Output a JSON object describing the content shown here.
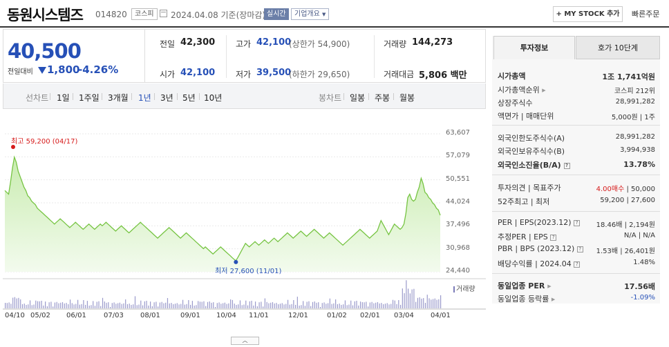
{
  "header": {
    "company": "동원시스템즈",
    "code": "014820",
    "market_badge": "코스피",
    "date_text": "2024.04.08 기준(장마감)",
    "live_label": "실시간",
    "corp_label": "기업개요",
    "mystock_label": "+ MY STOCK 추가",
    "quick_order": "빠른주문"
  },
  "price": {
    "current": "40,500",
    "compare_label": "전일대비",
    "change": "1,800",
    "change_pct": "-4.26%",
    "color_down": "#2650b7"
  },
  "stats": {
    "prev_label": "전일",
    "prev_value": "42,300",
    "high_label": "고가",
    "high_value": "42,100",
    "high_note": "(상한가 54,900)",
    "volume_label": "거래량",
    "volume_value": "144,273",
    "open_label": "시가",
    "open_value": "42,100",
    "low_label": "저가",
    "low_value": "39,500",
    "low_note": "(하한가 29,650)",
    "amount_label": "거래대금",
    "amount_value": "5,806 백만"
  },
  "tabs": {
    "line_label": "선차트",
    "line_items": [
      "1일",
      "1주일",
      "3개월",
      "1년",
      "3년",
      "5년",
      "10년"
    ],
    "selected": "1년",
    "candle_label": "봉차트",
    "candle_items": [
      "일봉",
      "주봉",
      "월봉"
    ]
  },
  "chart_data": {
    "type": "area",
    "series_color": "#76c442",
    "y_ticks": [
      "63,607",
      "57,079",
      "50,551",
      "44,024",
      "37,496",
      "30,968",
      "24,440"
    ],
    "ylim": [
      24440,
      63607
    ],
    "x_ticks": [
      "04/10",
      "05/02",
      "06/01",
      "07/03",
      "08/01",
      "09/01",
      "10/04",
      "11/01",
      "12/01",
      "01/02",
      "02/01",
      "03/04",
      "04/01"
    ],
    "high_annotation": "최고 59,200 (04/17)",
    "low_annotation": "최저 27,600 (11/01)",
    "high": 59200,
    "low": 27600,
    "volume_label": "거래량",
    "prices": [
      47500,
      47000,
      46500,
      50000,
      54000,
      57000,
      55500,
      53000,
      51500,
      50000,
      48500,
      47500,
      46000,
      45500,
      44500,
      44000,
      43500,
      42500,
      42000,
      41500,
      41000,
      40500,
      40000,
      39500,
      39000,
      38500,
      38000,
      38500,
      39000,
      39500,
      39000,
      38500,
      38000,
      37500,
      37000,
      37500,
      38000,
      38500,
      38000,
      37500,
      37000,
      36500,
      37000,
      37500,
      38000,
      37500,
      37000,
      36500,
      37000,
      37500,
      38000,
      37500,
      38000,
      38500,
      38000,
      37500,
      37000,
      36500,
      36000,
      36500,
      37000,
      37500,
      37000,
      36500,
      36000,
      35500,
      36000,
      36500,
      37000,
      37500,
      38000,
      38500,
      38000,
      37500,
      37000,
      36500,
      36000,
      35500,
      35000,
      34500,
      34000,
      34500,
      35000,
      35500,
      36000,
      36500,
      37000,
      36500,
      36000,
      35500,
      35000,
      34500,
      34000,
      34500,
      35000,
      35500,
      35000,
      34500,
      34000,
      33500,
      33000,
      32500,
      32000,
      31500,
      31000,
      31500,
      31000,
      30500,
      30000,
      29500,
      30000,
      30500,
      31000,
      31500,
      31000,
      30500,
      30000,
      29500,
      29000,
      28500,
      28000,
      27600,
      28500,
      29500,
      30500,
      31500,
      32500,
      32000,
      31500,
      32000,
      32500,
      33000,
      32500,
      32000,
      32500,
      33000,
      33500,
      33000,
      32500,
      33000,
      33500,
      34000,
      33500,
      33000,
      33500,
      34000,
      34500,
      35000,
      35500,
      35000,
      34500,
      34000,
      34500,
      35000,
      35500,
      36000,
      35500,
      35000,
      34500,
      35000,
      35500,
      36000,
      36500,
      36000,
      35500,
      35000,
      34500,
      34000,
      34500,
      35000,
      35500,
      35000,
      34500,
      34000,
      33500,
      33000,
      32500,
      32000,
      32500,
      33000,
      33500,
      34000,
      34500,
      35000,
      35500,
      36000,
      36500,
      36000,
      35500,
      35000,
      34500,
      34000,
      34500,
      35000,
      35500,
      36000,
      37500,
      39000,
      38000,
      37000,
      36000,
      35000,
      36000,
      37000,
      38000,
      37500,
      37000,
      36500,
      37000,
      38000,
      41000,
      45500,
      46500,
      45000,
      44500,
      45000,
      47000,
      48500,
      51000,
      49500,
      47000,
      46500,
      45500,
      45000,
      44000,
      43500,
      42500,
      42000,
      40500
    ]
  }
}
